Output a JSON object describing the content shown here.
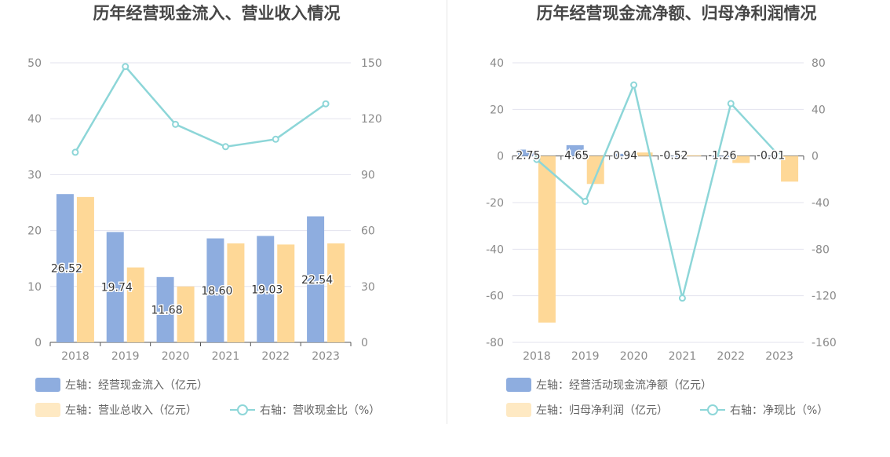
{
  "colors": {
    "bar_primary": "#8eaddf",
    "bar_secondary": "#fed897",
    "line": "#8dd6d8",
    "legend_secondary_swatch": "#fee9c3",
    "grid": "#e3e3ee",
    "axis": "#555555"
  },
  "chart_data": [
    {
      "type": "bar",
      "title": "历年经营现金流入、营业收入情况",
      "categories": [
        "2018",
        "2019",
        "2020",
        "2021",
        "2022",
        "2023"
      ],
      "left_axis": {
        "ylim": [
          0,
          50
        ],
        "ticks": [
          "0",
          "10",
          "20",
          "30",
          "40",
          "50"
        ]
      },
      "right_axis": {
        "ylim": [
          0,
          150
        ],
        "ticks": [
          "0",
          "30",
          "60",
          "90",
          "120",
          "150"
        ]
      },
      "series": [
        {
          "name": "左轴：经营现金流入（亿元）",
          "type": "bar",
          "axis": "left",
          "values": [
            26.52,
            19.74,
            11.68,
            18.6,
            19.03,
            22.54
          ],
          "labels": [
            "26.52",
            "19.74",
            "11.68",
            "18.60",
            "19.03",
            "22.54"
          ]
        },
        {
          "name": "左轴：营业总收入（亿元）",
          "type": "bar",
          "axis": "left",
          "values": [
            26.0,
            13.4,
            10.0,
            17.7,
            17.5,
            17.7
          ]
        },
        {
          "name": "右轴：营收现金比（%）",
          "type": "line",
          "axis": "right",
          "values": [
            102,
            148,
            117,
            105,
            109,
            128
          ]
        }
      ],
      "legend_placement": "bottom",
      "grid": true
    },
    {
      "type": "bar",
      "title": "历年经营现金流净额、归母净利润情况",
      "categories": [
        "2018",
        "2019",
        "2020",
        "2021",
        "2022",
        "2023"
      ],
      "left_axis": {
        "ylim": [
          -80,
          40
        ],
        "ticks": [
          "-80",
          "-60",
          "-40",
          "-20",
          "0",
          "20",
          "40"
        ]
      },
      "right_axis": {
        "ylim": [
          -160,
          80
        ],
        "ticks": [
          "-160",
          "-120",
          "-80",
          "-40",
          "0",
          "40",
          "80"
        ]
      },
      "series": [
        {
          "name": "左轴：经营活动现金流净额（亿元）",
          "type": "bar",
          "axis": "left",
          "values": [
            2.75,
            4.65,
            0.94,
            -0.52,
            -1.26,
            -0.01
          ],
          "labels": [
            "2.75",
            "4.65",
            "0.94",
            "-0.52",
            "-1.26",
            "-0.01"
          ]
        },
        {
          "name": "左轴：归母净利润（亿元）",
          "type": "bar",
          "axis": "left",
          "values": [
            -71.5,
            -12.0,
            1.5,
            0.3,
            -3.0,
            -11.0
          ]
        },
        {
          "name": "右轴：净现比（%）",
          "type": "line",
          "axis": "right",
          "values": [
            -3,
            -39,
            61,
            -122,
            45,
            0
          ]
        }
      ],
      "legend_placement": "bottom",
      "grid": true
    }
  ]
}
